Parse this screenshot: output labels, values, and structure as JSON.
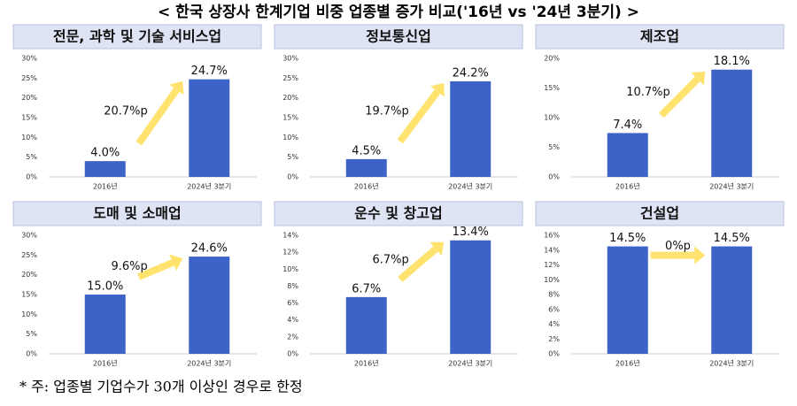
{
  "title": "< 한국 상장사 한계기업 비중 업종별 증가 비교('16년 vs '24년 3분기) >",
  "note": "* 주: 업종별 기업수가 30개 이상인 경우로 한정",
  "chart_data": [
    {
      "type": "bar",
      "title": "전문, 과학 및 기술 서비스업",
      "categories": [
        "2016년",
        "2024년 3분기"
      ],
      "values": [
        4.0,
        24.7
      ],
      "value_labels": [
        "4.0%",
        "24.7%"
      ],
      "annotation": "20.7%p",
      "color": "#3d63c8",
      "ylim": [
        0,
        30
      ],
      "yticks": [
        {
          "value": 0,
          "label": "0%"
        },
        {
          "value": 5,
          "label": "5%"
        },
        {
          "value": 10,
          "label": "10%"
        },
        {
          "value": 15,
          "label": "15%"
        },
        {
          "value": 20,
          "label": "20%"
        },
        {
          "value": 25,
          "label": "25%"
        },
        {
          "value": 30,
          "label": "30%"
        }
      ]
    },
    {
      "type": "bar",
      "title": "정보통신업",
      "categories": [
        "2016년",
        "2024년 3분기"
      ],
      "values": [
        4.5,
        24.2
      ],
      "value_labels": [
        "4.5%",
        "24.2%"
      ],
      "annotation": "19.7%p",
      "color": "#3d63c8",
      "ylim": [
        0,
        30
      ],
      "yticks": [
        {
          "value": 0,
          "label": "0%"
        },
        {
          "value": 5,
          "label": "5%"
        },
        {
          "value": 10,
          "label": "10%"
        },
        {
          "value": 15,
          "label": "15%"
        },
        {
          "value": 20,
          "label": "20%"
        },
        {
          "value": 25,
          "label": "25%"
        },
        {
          "value": 30,
          "label": "30%"
        }
      ]
    },
    {
      "type": "bar",
      "title": "제조업",
      "categories": [
        "2016년",
        "2024년 3분기"
      ],
      "values": [
        7.4,
        18.1
      ],
      "value_labels": [
        "7.4%",
        "18.1%"
      ],
      "annotation": "10.7%p",
      "color": "#3d63c8",
      "ylim": [
        0,
        20
      ],
      "yticks": [
        {
          "value": 0,
          "label": "0%"
        },
        {
          "value": 5,
          "label": "5%"
        },
        {
          "value": 10,
          "label": "10%"
        },
        {
          "value": 15,
          "label": "15%"
        },
        {
          "value": 20,
          "label": "20%"
        }
      ]
    },
    {
      "type": "bar",
      "title": "도매 및 소매업",
      "categories": [
        "2016년",
        "2024년 3분기"
      ],
      "values": [
        15.0,
        24.6
      ],
      "value_labels": [
        "15.0%",
        "24.6%"
      ],
      "annotation": "9.6%p",
      "color": "#3d63c8",
      "ylim": [
        0,
        30
      ],
      "yticks": [
        {
          "value": 0,
          "label": "0%"
        },
        {
          "value": 5,
          "label": "5%"
        },
        {
          "value": 10,
          "label": "10%"
        },
        {
          "value": 15,
          "label": "15%"
        },
        {
          "value": 20,
          "label": "20%"
        },
        {
          "value": 25,
          "label": "25%"
        },
        {
          "value": 30,
          "label": "30%"
        }
      ]
    },
    {
      "type": "bar",
      "title": "운수 및 창고업",
      "categories": [
        "2016년",
        "2024년 3분기"
      ],
      "values": [
        6.7,
        13.4
      ],
      "value_labels": [
        "6.7%",
        "13.4%"
      ],
      "annotation": "6.7%p",
      "color": "#3d63c8",
      "ylim": [
        0,
        14
      ],
      "yticks": [
        {
          "value": 0,
          "label": "0%"
        },
        {
          "value": 2,
          "label": "2%"
        },
        {
          "value": 4,
          "label": "4%"
        },
        {
          "value": 6,
          "label": "6%"
        },
        {
          "value": 8,
          "label": "8%"
        },
        {
          "value": 10,
          "label": "10%"
        },
        {
          "value": 12,
          "label": "12%"
        },
        {
          "value": 14,
          "label": "14%"
        }
      ]
    },
    {
      "type": "bar",
      "title": "건설업",
      "categories": [
        "2016년",
        "2024년 3분기"
      ],
      "values": [
        14.5,
        14.5
      ],
      "value_labels": [
        "14.5%",
        "14.5%"
      ],
      "annotation": "0%p",
      "color": "#3d63c8",
      "ylim": [
        0,
        16
      ],
      "yticks": [
        {
          "value": 0,
          "label": "0%"
        },
        {
          "value": 2,
          "label": "2%"
        },
        {
          "value": 4,
          "label": "4%"
        },
        {
          "value": 6,
          "label": "6%"
        },
        {
          "value": 8,
          "label": "8%"
        },
        {
          "value": 10,
          "label": "10%"
        },
        {
          "value": 12,
          "label": "12%"
        },
        {
          "value": 14,
          "label": "14%"
        },
        {
          "value": 16,
          "label": "16%"
        }
      ]
    }
  ]
}
